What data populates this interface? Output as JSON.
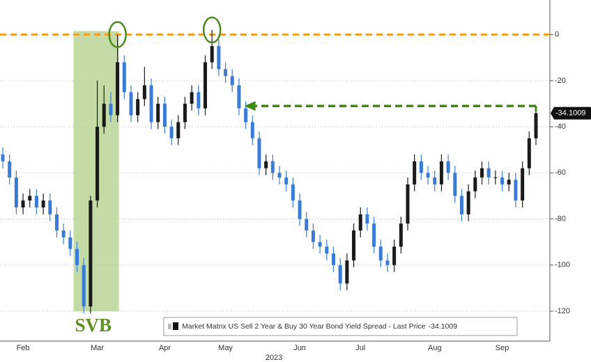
{
  "chart_data": {
    "type": "candlestick",
    "series": [
      {
        "name": "Market Matrix US Sell 2 Year & Buy 30 Year Bond Yield Spread - Last Price",
        "up_color": "#1a1a1a",
        "down_color": "#3a7bd5",
        "open": [
          -52,
          -55,
          -62,
          -75,
          -72,
          -70,
          -75,
          -72,
          -78,
          -85,
          -88,
          -93,
          -100,
          -118,
          -72,
          -40,
          -30,
          -35,
          -12,
          -25,
          -35,
          -28,
          -22,
          -38,
          -30,
          -40,
          -45,
          -38,
          -30,
          -25,
          -32,
          -12,
          -5,
          -15,
          -18,
          -22,
          -32,
          -38,
          -45,
          -58,
          -55,
          -60,
          -62,
          -65,
          -72,
          -80,
          -85,
          -90,
          -92,
          -95,
          -100,
          -108,
          -98,
          -85,
          -78,
          -82,
          -92,
          -98,
          -100,
          -92,
          -82,
          -65,
          -55,
          -60,
          -62,
          -65,
          -55,
          -60,
          -70,
          -78,
          -68,
          -62,
          -58,
          -62,
          -62,
          -65,
          -63,
          -72,
          -58,
          -45
        ],
        "high": [
          -49,
          -52,
          -59,
          -69,
          -67,
          -67,
          -69,
          -69,
          -75,
          -82,
          -85,
          -90,
          -97,
          -70,
          -20,
          -22,
          -25,
          0,
          -9,
          -22,
          -25,
          -14,
          -19,
          -27,
          -27,
          -37,
          -35,
          -27,
          -22,
          -22,
          -9,
          2,
          -2,
          -12,
          -15,
          -19,
          -29,
          -35,
          -42,
          -52,
          -52,
          -57,
          -59,
          -62,
          -69,
          -77,
          -82,
          -87,
          -89,
          -92,
          -97,
          -95,
          -82,
          -75,
          -75,
          -79,
          -89,
          -95,
          -89,
          -79,
          -62,
          -52,
          -52,
          -57,
          -59,
          -52,
          -52,
          -57,
          -67,
          -65,
          -59,
          -55,
          -55,
          -59,
          -59,
          -60,
          -60,
          -55,
          -42,
          -31
        ],
        "low": [
          -58,
          -65,
          -78,
          -78,
          -75,
          -78,
          -78,
          -81,
          -88,
          -91,
          -96,
          -103,
          -121,
          -121,
          -75,
          -43,
          -38,
          -38,
          -28,
          -38,
          -38,
          -31,
          -41,
          -41,
          -43,
          -48,
          -48,
          -41,
          -33,
          -35,
          -35,
          -15,
          -18,
          -21,
          -25,
          -35,
          -41,
          -48,
          -61,
          -61,
          -63,
          -65,
          -68,
          -75,
          -83,
          -88,
          -93,
          -95,
          -98,
          -103,
          -111,
          -111,
          -101,
          -88,
          -85,
          -95,
          -101,
          -103,
          -103,
          -95,
          -85,
          -68,
          -63,
          -65,
          -68,
          -68,
          -63,
          -73,
          -81,
          -81,
          -71,
          -65,
          -65,
          -65,
          -68,
          -68,
          -75,
          -75,
          -61,
          -48
        ],
        "close": [
          -55,
          -62,
          -75,
          -72,
          -70,
          -75,
          -72,
          -78,
          -85,
          -88,
          -93,
          -100,
          -118,
          -72,
          -40,
          -30,
          -35,
          -12,
          -25,
          -35,
          -28,
          -22,
          -38,
          -30,
          -40,
          -45,
          -38,
          -30,
          -25,
          -32,
          -12,
          -5,
          -15,
          -18,
          -22,
          -32,
          -38,
          -45,
          -58,
          -55,
          -60,
          -62,
          -65,
          -72,
          -80,
          -85,
          -90,
          -92,
          -95,
          -100,
          -108,
          -98,
          -85,
          -78,
          -82,
          -92,
          -98,
          -100,
          -92,
          -82,
          -65,
          -55,
          -60,
          -62,
          -65,
          -55,
          -60,
          -70,
          -78,
          -68,
          -62,
          -58,
          -62,
          -62,
          -65,
          -63,
          -72,
          -58,
          -45,
          -34.1009
        ]
      }
    ],
    "categories": [
      null,
      null,
      null,
      "Feb",
      null,
      null,
      null,
      null,
      null,
      null,
      null,
      null,
      null,
      null,
      "Mar",
      null,
      null,
      null,
      null,
      null,
      null,
      null,
      null,
      null,
      "Apr",
      null,
      null,
      null,
      null,
      null,
      null,
      null,
      null,
      "May",
      null,
      null,
      null,
      null,
      null,
      null,
      null,
      null,
      null,
      null,
      "Jun",
      null,
      null,
      null,
      null,
      null,
      null,
      null,
      null,
      "Jul",
      null,
      null,
      null,
      null,
      null,
      null,
      null,
      null,
      null,
      null,
      "Aug",
      null,
      null,
      null,
      null,
      null,
      null,
      null,
      null,
      null,
      "Sep",
      null,
      null,
      null,
      null,
      null
    ],
    "x_label": "2023",
    "ylim": [
      -133,
      15
    ],
    "yticks": [
      0,
      -20,
      -40,
      -60,
      -80,
      -100,
      -120
    ],
    "grid": true,
    "reference_line": {
      "value": 0,
      "color": "#f39c1f"
    },
    "annotation": "SVB",
    "annotation_color": "#5e8f22"
  }
}
